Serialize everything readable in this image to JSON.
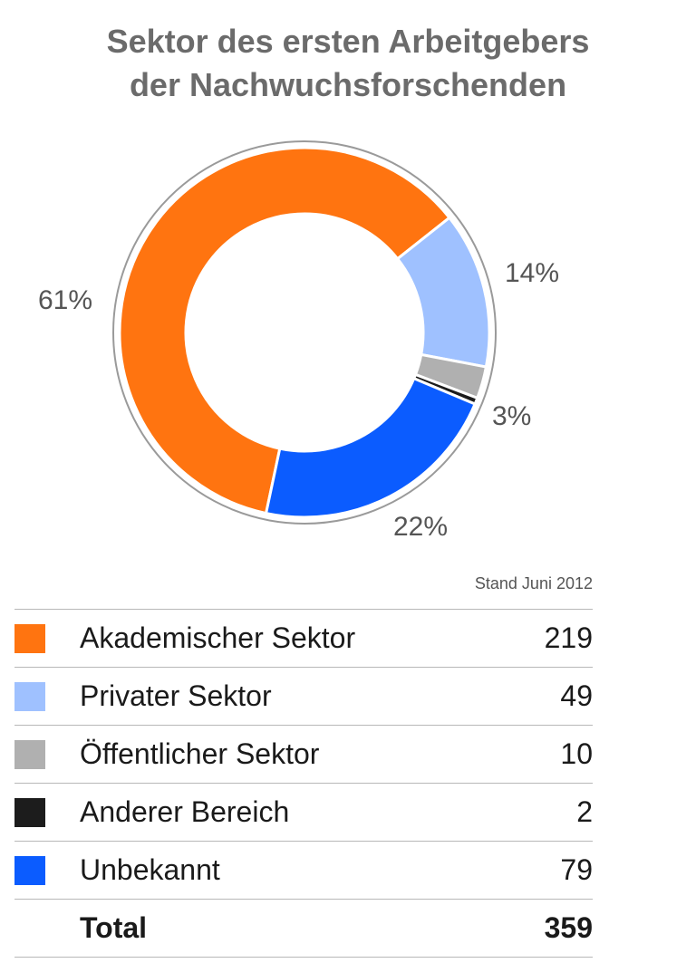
{
  "title_line1": "Sektor des ersten Arbeitgebers",
  "title_line2": "der Nachwuchsforschenden",
  "note": "Stand Juni 2012",
  "chart_data": {
    "type": "donut",
    "title": "Sektor des ersten Arbeitgebers der Nachwuchsforschenden",
    "categories": [
      "Akademischer Sektor",
      "Privater Sektor",
      "Öffentlicher Sektor",
      "Anderer Bereich",
      "Unbekannt"
    ],
    "values": [
      219,
      49,
      10,
      2,
      79
    ],
    "colors": [
      "#ff7410",
      "#9fc1ff",
      "#b0b0b0",
      "#1c1c1c",
      "#0b5cff"
    ],
    "percent_labels": [
      "61%",
      "14%",
      "3%",
      "",
      "22%"
    ],
    "total_label": "Total",
    "total": 359
  }
}
